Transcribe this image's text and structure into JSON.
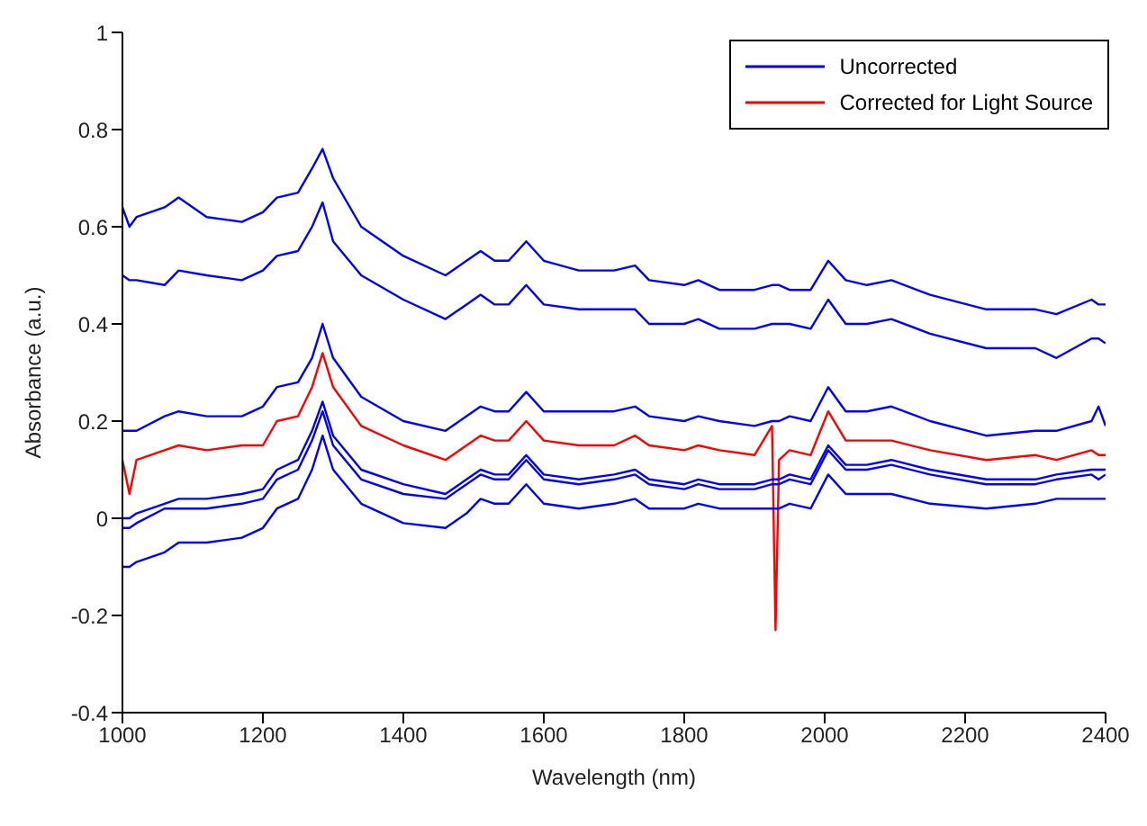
{
  "chart_data": {
    "type": "line",
    "xlabel": "Wavelength (nm)",
    "ylabel": "Absorbance (a.u.)",
    "x": [
      1000,
      1010,
      1020,
      1060,
      1080,
      1120,
      1170,
      1200,
      1220,
      1250,
      1270,
      1285,
      1300,
      1340,
      1400,
      1460,
      1490,
      1510,
      1530,
      1550,
      1575,
      1600,
      1650,
      1700,
      1730,
      1750,
      1800,
      1820,
      1850,
      1900,
      1925,
      1930,
      1935,
      1950,
      1980,
      2005,
      2030,
      2060,
      2095,
      2150,
      2230,
      2300,
      2330,
      2380,
      2390,
      2400
    ],
    "series": [
      {
        "name": "Uncorrected",
        "color": "#0000ff",
        "values": [
          0.64,
          0.6,
          0.62,
          0.64,
          0.66,
          0.62,
          0.61,
          0.63,
          0.66,
          0.67,
          0.72,
          0.76,
          0.7,
          0.6,
          0.54,
          0.5,
          0.53,
          0.55,
          0.53,
          0.53,
          0.57,
          0.53,
          0.51,
          0.51,
          0.52,
          0.49,
          0.48,
          0.49,
          0.47,
          0.47,
          0.48,
          0.48,
          0.48,
          0.47,
          0.47,
          0.53,
          0.49,
          0.48,
          0.49,
          0.46,
          0.43,
          0.43,
          0.42,
          0.45,
          0.44,
          0.44
        ]
      },
      {
        "name": "Corrected for Light Source",
        "color": "#ff0000",
        "values": [
          0.12,
          0.05,
          0.12,
          0.14,
          0.15,
          0.14,
          0.15,
          0.15,
          0.2,
          0.21,
          0.27,
          0.34,
          0.27,
          0.19,
          0.15,
          0.12,
          0.15,
          0.17,
          0.16,
          0.16,
          0.2,
          0.16,
          0.15,
          0.15,
          0.17,
          0.15,
          0.14,
          0.15,
          0.14,
          0.13,
          0.19,
          -0.23,
          0.12,
          0.14,
          0.13,
          0.22,
          0.16,
          0.16,
          0.16,
          0.14,
          0.12,
          0.13,
          0.12,
          0.14,
          0.13,
          0.13
        ]
      },
      {
        "color": "#0000ff",
        "values": [
          0.5,
          0.49,
          0.49,
          0.48,
          0.51,
          0.5,
          0.49,
          0.51,
          0.54,
          0.55,
          0.6,
          0.65,
          0.57,
          0.5,
          0.45,
          0.41,
          0.44,
          0.46,
          0.44,
          0.44,
          0.48,
          0.44,
          0.43,
          0.43,
          0.43,
          0.4,
          0.4,
          0.41,
          0.39,
          0.39,
          0.4,
          0.4,
          0.4,
          0.4,
          0.39,
          0.45,
          0.4,
          0.4,
          0.41,
          0.38,
          0.35,
          0.35,
          0.33,
          0.37,
          0.37,
          0.36
        ]
      },
      {
        "color": "#0000ff",
        "values": [
          0.18,
          0.18,
          0.18,
          0.21,
          0.22,
          0.21,
          0.21,
          0.23,
          0.27,
          0.28,
          0.33,
          0.4,
          0.33,
          0.25,
          0.2,
          0.18,
          0.21,
          0.23,
          0.22,
          0.22,
          0.26,
          0.22,
          0.22,
          0.22,
          0.23,
          0.21,
          0.2,
          0.21,
          0.2,
          0.19,
          0.2,
          0.2,
          0.2,
          0.21,
          0.2,
          0.27,
          0.22,
          0.22,
          0.23,
          0.2,
          0.17,
          0.18,
          0.18,
          0.2,
          0.23,
          0.19
        ]
      },
      {
        "color": "#0000ff",
        "values": [
          0,
          0,
          0.01,
          0.03,
          0.04,
          0.04,
          0.05,
          0.06,
          0.1,
          0.12,
          0.18,
          0.24,
          0.17,
          0.1,
          0.07,
          0.05,
          0.08,
          0.1,
          0.09,
          0.09,
          0.13,
          0.09,
          0.08,
          0.09,
          0.1,
          0.08,
          0.07,
          0.08,
          0.07,
          0.07,
          0.08,
          0.08,
          0.08,
          0.09,
          0.08,
          0.15,
          0.11,
          0.11,
          0.12,
          0.1,
          0.08,
          0.08,
          0.09,
          0.1,
          0.1,
          0.1
        ]
      },
      {
        "color": "#0000ff",
        "values": [
          -0.02,
          -0.02,
          -0.01,
          0.02,
          0.02,
          0.02,
          0.03,
          0.04,
          0.08,
          0.1,
          0.16,
          0.22,
          0.15,
          0.08,
          0.05,
          0.04,
          0.07,
          0.09,
          0.08,
          0.08,
          0.12,
          0.08,
          0.07,
          0.08,
          0.09,
          0.07,
          0.06,
          0.07,
          0.06,
          0.06,
          0.07,
          0.07,
          0.07,
          0.08,
          0.07,
          0.14,
          0.1,
          0.1,
          0.11,
          0.09,
          0.07,
          0.07,
          0.08,
          0.09,
          0.08,
          0.09
        ]
      },
      {
        "color": "#0000ff",
        "values": [
          -0.1,
          -0.1,
          -0.09,
          -0.07,
          -0.05,
          -0.05,
          -0.04,
          -0.02,
          0.02,
          0.04,
          0.1,
          0.17,
          0.1,
          0.03,
          -0.01,
          -0.02,
          0.01,
          0.04,
          0.03,
          0.03,
          0.07,
          0.03,
          0.02,
          0.03,
          0.04,
          0.02,
          0.02,
          0.03,
          0.02,
          0.02,
          0.02,
          0.02,
          0.02,
          0.03,
          0.02,
          0.09,
          0.05,
          0.05,
          0.05,
          0.03,
          0.02,
          0.03,
          0.04,
          0.04,
          0.04,
          0.04
        ]
      }
    ],
    "xlim": [
      1000,
      2400
    ],
    "xticks": [
      1000,
      1200,
      1400,
      1600,
      1800,
      2000,
      2200,
      2400
    ],
    "ylim": [
      -0.4,
      1
    ],
    "yticks": [
      -0.4,
      -0.2,
      0,
      0.2,
      0.4,
      0.6,
      0.8,
      1
    ],
    "grid": false,
    "legend": "top right",
    "marker": "none",
    "line_style": "solid"
  }
}
